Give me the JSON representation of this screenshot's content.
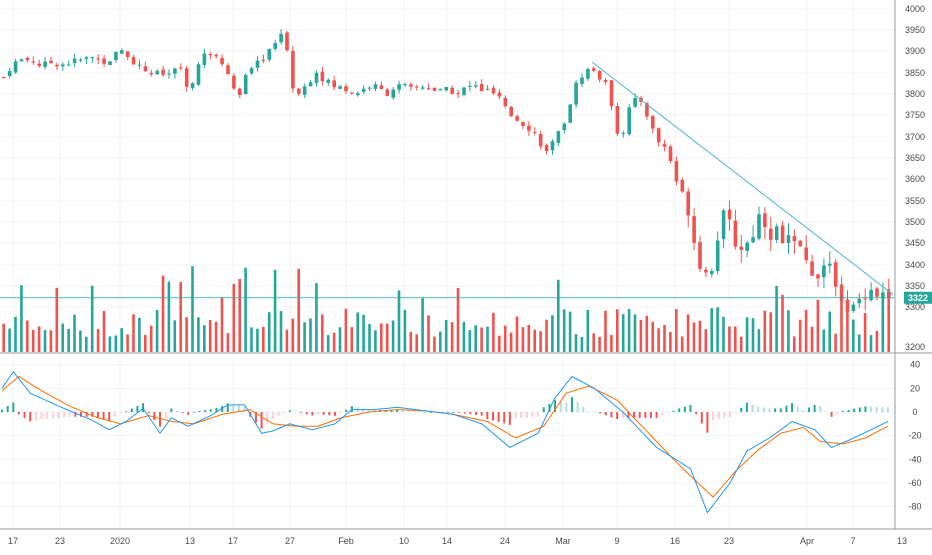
{
  "colors": {
    "up": "#26a69a",
    "down": "#ef5350",
    "vol_up": "#26a69a",
    "vol_down": "#ef5350",
    "macd_line": "#2196f3",
    "signal_line": "#ff6d00",
    "hist_up_strong": "#26a69a",
    "hist_up_weak": "#b2dfdb",
    "hist_down_strong": "#ef5350",
    "hist_down_weak": "#ffcdd2",
    "trendline": "#4fb3d9",
    "price_line": "#26a69a",
    "grid": "#f0f3f5",
    "axis": "#4a4a4a"
  },
  "last_price": {
    "label": "3322",
    "value": 3322
  },
  "x_axis": {
    "labels": [
      "17",
      "23",
      "2020",
      "13",
      "17",
      "27",
      "Feb",
      "10",
      "14",
      "24",
      "Mar",
      "9",
      "16",
      "23",
      "Apr",
      "7",
      "13"
    ]
  },
  "chart_data": [
    {
      "type": "candlestick",
      "panel": "price",
      "y_ticks": [
        "4000",
        "3950",
        "3900",
        "3850",
        "3800",
        "3750",
        "3700",
        "3650",
        "3600",
        "3550",
        "3500",
        "3450",
        "3400",
        "3350",
        "3300",
        "3200"
      ],
      "ylim": [
        3190,
        4010
      ],
      "x_range": [
        "Dec 13",
        "Apr 10"
      ],
      "series_summary": [
        {
          "x": "Dec 17",
          "close": 3865
        },
        {
          "x": "Dec 23",
          "close": 3875
        },
        {
          "x": "Jan 2",
          "close": 3905
        },
        {
          "x": "Jan 13",
          "close": 3850
        },
        {
          "x": "Jan 17",
          "close": 3775
        },
        {
          "x": "Jan 24",
          "close": 3935
        },
        {
          "x": "Jan 27",
          "close": 3820
        },
        {
          "x": "Feb 10",
          "close": 3815
        },
        {
          "x": "Feb 14",
          "close": 3820
        },
        {
          "x": "Feb 24",
          "close": 3735
        },
        {
          "x": "Feb 28",
          "close": 3660
        },
        {
          "x": "Mar 5",
          "close": 3860
        },
        {
          "x": "Mar 9",
          "close": 3700
        },
        {
          "x": "Mar 12",
          "close": 3780
        },
        {
          "x": "Mar 16",
          "close": 3650
        },
        {
          "x": "Mar 20",
          "close": 3385
        },
        {
          "x": "Mar 23",
          "close": 3470
        },
        {
          "x": "Mar 27",
          "close": 3500
        },
        {
          "x": "Apr 1",
          "close": 3420
        },
        {
          "x": "Apr 6",
          "close": 3315
        },
        {
          "x": "Apr 9",
          "close": 3330
        }
      ],
      "trendline": {
        "from": {
          "x": "Mar 5",
          "y": 3875
        },
        "to": {
          "x": "Apr 10",
          "y": 3330
        }
      },
      "horizontal_line": 3322
    },
    {
      "type": "bar",
      "panel": "volume",
      "description_of_series": "volume bars colored by candle direction"
    },
    {
      "type": "line",
      "panel": "macd",
      "y_ticks": [
        "40",
        "20",
        "0",
        "-20",
        "-40",
        "-60",
        "-80"
      ],
      "ylim": [
        -88,
        44
      ],
      "series": [
        {
          "key": "macd",
          "points": [
            [
              0,
              20
            ],
            [
              4,
              34
            ],
            [
              10,
              16
            ],
            [
              20,
              5
            ],
            [
              32,
              -7
            ],
            [
              38,
              -15
            ],
            [
              44,
              -8
            ],
            [
              50,
              3
            ],
            [
              56,
              -18
            ],
            [
              60,
              -5
            ],
            [
              66,
              -12
            ],
            [
              74,
              -3
            ],
            [
              80,
              6
            ],
            [
              86,
              6
            ],
            [
              92,
              -18
            ],
            [
              96,
              -16
            ],
            [
              102,
              -10
            ],
            [
              110,
              -15
            ],
            [
              118,
              -10
            ],
            [
              124,
              2
            ],
            [
              132,
              2
            ],
            [
              140,
              4
            ],
            [
              150,
              1
            ],
            [
              160,
              -2
            ],
            [
              170,
              -10
            ],
            [
              180,
              -30
            ],
            [
              190,
              -18
            ],
            [
              196,
              12
            ],
            [
              202,
              30
            ],
            [
              210,
              20
            ],
            [
              220,
              0
            ],
            [
              232,
              -30
            ],
            [
              244,
              -48
            ],
            [
              250,
              -85
            ],
            [
              258,
              -60
            ],
            [
              264,
              -33
            ],
            [
              272,
              -22
            ],
            [
              280,
              -8
            ],
            [
              288,
              -15
            ],
            [
              294,
              -30
            ],
            [
              300,
              -24
            ],
            [
              308,
              -15
            ],
            [
              314,
              -8
            ]
          ]
        },
        {
          "key": "signal",
          "points": [
            [
              0,
              18
            ],
            [
              6,
              30
            ],
            [
              14,
              18
            ],
            [
              24,
              5
            ],
            [
              34,
              -5
            ],
            [
              42,
              -10
            ],
            [
              52,
              -3
            ],
            [
              60,
              -8
            ],
            [
              68,
              -10
            ],
            [
              78,
              -2
            ],
            [
              88,
              2
            ],
            [
              96,
              -10
            ],
            [
              104,
              -12
            ],
            [
              112,
              -12
            ],
            [
              120,
              -5
            ],
            [
              130,
              0
            ],
            [
              140,
              2
            ],
            [
              150,
              1
            ],
            [
              160,
              -2
            ],
            [
              172,
              -8
            ],
            [
              182,
              -22
            ],
            [
              192,
              -12
            ],
            [
              200,
              16
            ],
            [
              208,
              22
            ],
            [
              218,
              10
            ],
            [
              228,
              -15
            ],
            [
              240,
              -45
            ],
            [
              252,
              -72
            ],
            [
              260,
              -50
            ],
            [
              268,
              -32
            ],
            [
              276,
              -18
            ],
            [
              284,
              -13
            ],
            [
              290,
              -25
            ],
            [
              298,
              -27
            ],
            [
              306,
              -22
            ],
            [
              314,
              -12
            ]
          ]
        }
      ]
    }
  ]
}
